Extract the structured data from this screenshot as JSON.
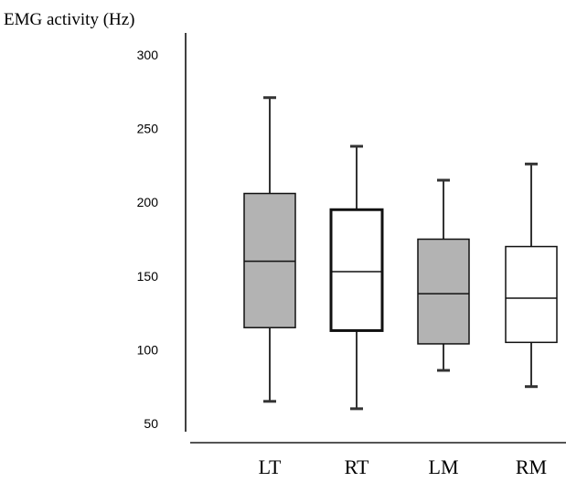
{
  "chart_data": {
    "type": "box",
    "ylabel": "EMG activity (Hz)",
    "yticks": [
      50,
      100,
      150,
      200,
      250,
      300
    ],
    "ylim": [
      45,
      310
    ],
    "categories": [
      "LT",
      "RT",
      "LM",
      "RM"
    ],
    "boxes": [
      {
        "label": "LT",
        "min": 65,
        "q1": 115,
        "median": 160,
        "q3": 206,
        "max": 271,
        "fill": "#b3b3b3"
      },
      {
        "label": "RT",
        "min": 60,
        "q1": 113,
        "median": 153,
        "q3": 195,
        "max": 238,
        "fill": "#ffffff"
      },
      {
        "label": "LM",
        "min": 86,
        "q1": 104,
        "median": 138,
        "q3": 175,
        "max": 215,
        "fill": "#b3b3b3"
      },
      {
        "label": "RM",
        "min": 75,
        "q1": 105,
        "median": 135,
        "q3": 170,
        "max": 226,
        "fill": "#ffffff"
      }
    ],
    "grid": false,
    "legend": "none"
  }
}
